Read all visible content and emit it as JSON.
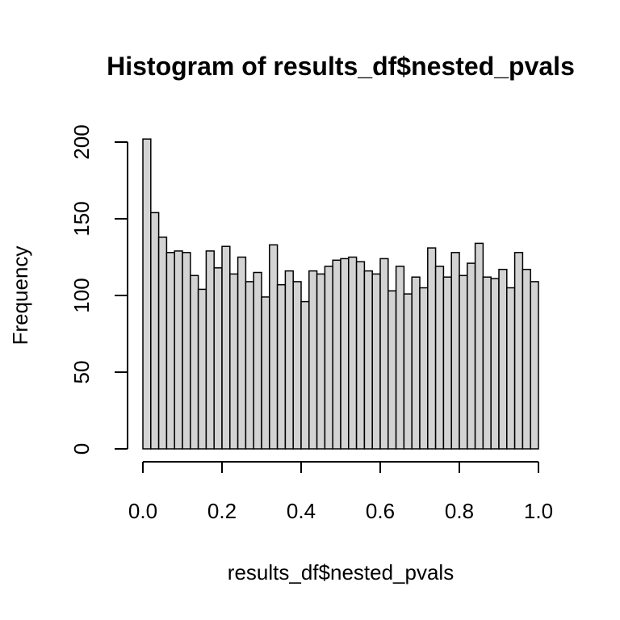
{
  "chart_data": {
    "type": "bar",
    "title": "Histogram of results_df$nested_pvals",
    "xlabel": "results_df$nested_pvals",
    "ylabel": "Frequency",
    "xlim": [
      0,
      1
    ],
    "ylim": [
      0,
      200
    ],
    "x_ticks": [
      0.0,
      0.2,
      0.4,
      0.6,
      0.8,
      1.0
    ],
    "x_tick_labels": [
      "0.0",
      "0.2",
      "0.4",
      "0.6",
      "0.8",
      "1.0"
    ],
    "y_ticks": [
      0,
      50,
      100,
      150,
      200
    ],
    "y_tick_labels": [
      "0",
      "50",
      "100",
      "150",
      "200"
    ],
    "bin_width": 0.02,
    "bin_starts": [
      0.0,
      0.02,
      0.04,
      0.06,
      0.08,
      0.1,
      0.12,
      0.14,
      0.16,
      0.18,
      0.2,
      0.22,
      0.24,
      0.26,
      0.28,
      0.3,
      0.32,
      0.34,
      0.36,
      0.38,
      0.4,
      0.42,
      0.44,
      0.46,
      0.48,
      0.5,
      0.52,
      0.54,
      0.56,
      0.58,
      0.6,
      0.62,
      0.64,
      0.66,
      0.68,
      0.7,
      0.72,
      0.74,
      0.76,
      0.78,
      0.8,
      0.82,
      0.84,
      0.86,
      0.88,
      0.9,
      0.92,
      0.94,
      0.96,
      0.98
    ],
    "values": [
      202,
      154,
      138,
      128,
      129,
      128,
      113,
      104,
      129,
      118,
      132,
      114,
      125,
      109,
      115,
      99,
      133,
      107,
      116,
      109,
      96,
      116,
      114,
      119,
      123,
      124,
      125,
      122,
      116,
      114,
      124,
      103,
      119,
      101,
      112,
      105,
      131,
      119,
      112,
      128,
      113,
      121,
      134,
      112,
      111,
      117,
      105,
      128,
      117,
      109
    ],
    "bar_fill": "#d3d3d3",
    "bar_stroke": "#000000",
    "grid": false,
    "legend": "none"
  }
}
